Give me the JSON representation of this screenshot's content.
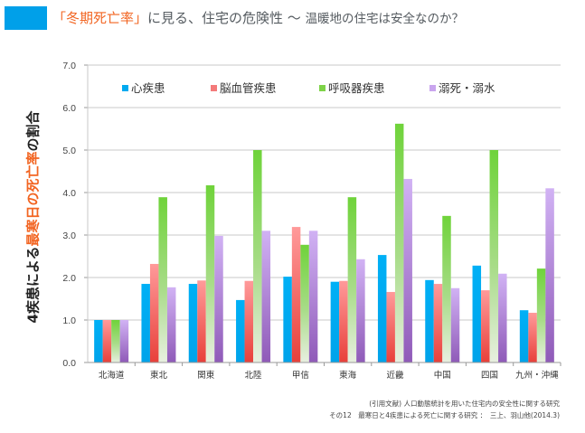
{
  "header": {
    "title_highlight": "「冬期死亡率」",
    "title_main": "に見る、住宅の危険性 〜 ",
    "title_sub": "温暖地の住宅は安全なのか？",
    "accent_box_color": "#00a0e9",
    "highlight_color": "#f26522"
  },
  "source": {
    "line1": "(引用文献) 人口動態統計を用いた住宅内の安全性に関する研究",
    "line2": "その12　最寒日と4疾患による死亡に関する研究 ：　三上、羽山他(2014.3)"
  },
  "chart_data": {
    "type": "bar",
    "title": "",
    "ylabel_prefix": "4疾患による",
    "ylabel_highlight": "最寒日の死亡率",
    "ylabel_suffix": "の割合",
    "xlabel": "",
    "ylim": [
      0,
      7
    ],
    "yticks": [
      "0.0",
      "1.0",
      "2.0",
      "3.0",
      "4.0",
      "5.0",
      "6.0",
      "7.0"
    ],
    "grid": true,
    "legend_position": "top",
    "categories": [
      "北海道",
      "東北",
      "関東",
      "北陸",
      "甲信",
      "東海",
      "近畿",
      "中国",
      "四国",
      "九州・沖縄"
    ],
    "series": [
      {
        "name": "心疾患",
        "color": "#00aaf0",
        "values": [
          1.0,
          1.85,
          1.85,
          1.47,
          2.02,
          1.9,
          2.53,
          1.94,
          2.28,
          1.23
        ]
      },
      {
        "name": "脳血管疾患",
        "color": "#f47a7a",
        "values": [
          1.0,
          2.32,
          1.93,
          1.92,
          3.19,
          1.92,
          1.66,
          1.85,
          1.7,
          1.17
        ]
      },
      {
        "name": "呼吸器疾患",
        "color": "#7ed348",
        "values": [
          1.0,
          3.89,
          4.17,
          5.0,
          2.77,
          3.89,
          5.62,
          3.45,
          5.0,
          2.21
        ]
      },
      {
        "name": "溺死・溺水",
        "color": "#c9a5ee",
        "values": [
          1.0,
          1.77,
          2.98,
          3.1,
          3.1,
          2.43,
          4.32,
          1.75,
          2.09,
          4.1
        ]
      }
    ]
  }
}
